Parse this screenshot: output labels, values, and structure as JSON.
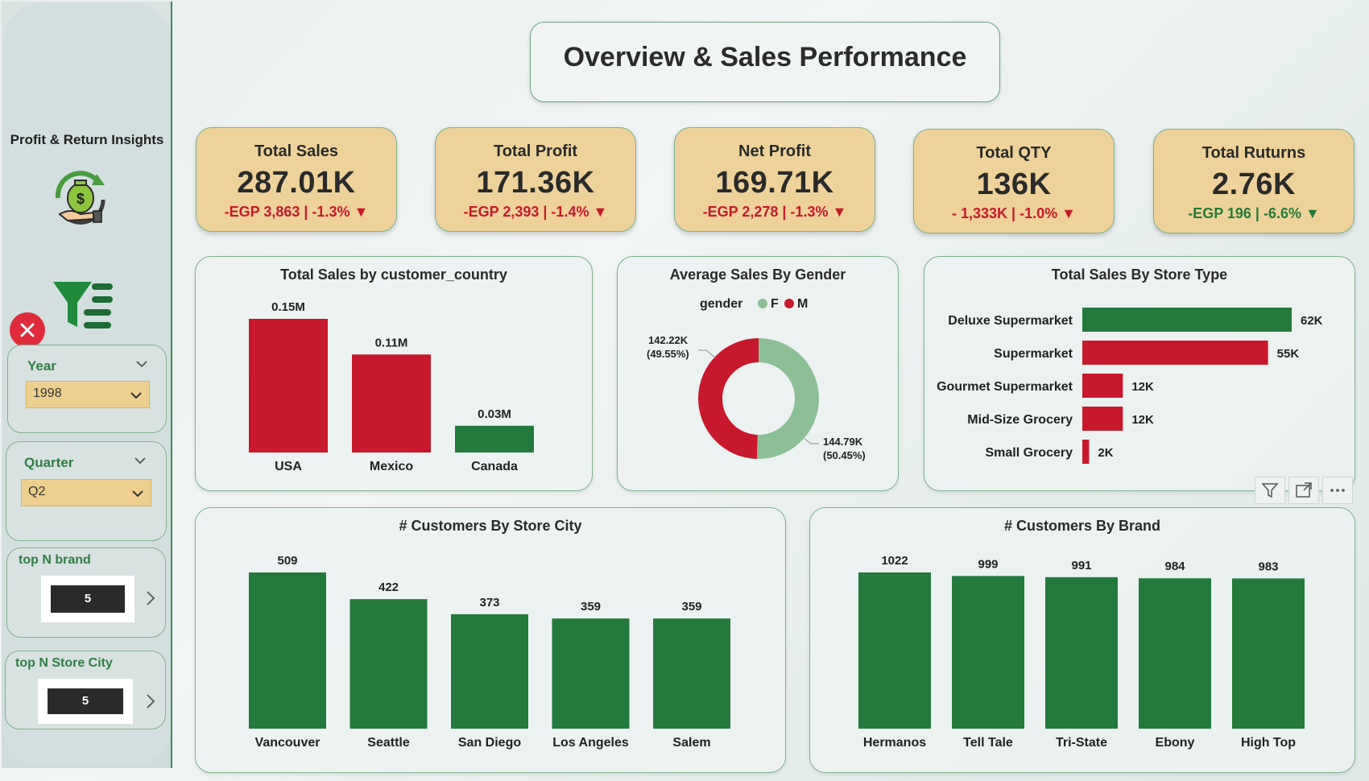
{
  "page": {
    "title": "Overview & Sales Performance"
  },
  "sidebar": {
    "nav_title": "Profit & Return Insights",
    "slicers": [
      {
        "label": "Year",
        "value": "1998"
      },
      {
        "label": "Quarter",
        "value": "Q2"
      }
    ],
    "top_n": [
      {
        "label": "top N brand",
        "value": "5"
      },
      {
        "label": "top N Store City",
        "value": "5"
      }
    ]
  },
  "kpis": [
    {
      "label": "Total Sales",
      "value": "287.01K",
      "delta": "-EGP 3,863 | -1.3%",
      "trend": "down",
      "color": "red"
    },
    {
      "label": "Total Profit",
      "value": "171.36K",
      "delta": "-EGP 2,393 | -1.4%",
      "trend": "down",
      "color": "red"
    },
    {
      "label": "Net Profit",
      "value": "169.71K",
      "delta": "-EGP 2,278 | -1.3%",
      "trend": "down",
      "color": "red"
    },
    {
      "label": "Total QTY",
      "value": "136K",
      "delta": "- 1,333K | -1.0%",
      "trend": "down",
      "color": "red"
    },
    {
      "label": "Total Ruturns",
      "value": "2.76K",
      "delta": "-EGP 196 | -6.6%",
      "trend": "down",
      "color": "green"
    }
  ],
  "colors": {
    "red": "#c8182b",
    "green": "#237a3c",
    "light_green": "#8dbf97",
    "gold": "#efd29b"
  },
  "chart_data": [
    {
      "type": "bar",
      "title": "Total Sales by customer_country",
      "categories": [
        "USA",
        "Mexico",
        "Canada"
      ],
      "values": [
        0.15,
        0.11,
        0.03
      ],
      "labels": [
        "0.15M",
        "0.11M",
        "0.03M"
      ],
      "bar_colors": [
        "#c8182b",
        "#c8182b",
        "#237a3c"
      ]
    },
    {
      "type": "pie",
      "title": "Average Sales By Gender",
      "legend_title": "gender",
      "categories": [
        "F",
        "M"
      ],
      "values": [
        144.79,
        142.22
      ],
      "labels": [
        "144.79K (50.45%)",
        "142.22K (49.55%)"
      ],
      "label_lines": {
        "F": [
          "144.79K",
          "(50.45%)"
        ],
        "M": [
          "142.22K",
          "(49.55%)"
        ]
      },
      "slice_colors": [
        "#8dbf97",
        "#c8182b"
      ]
    },
    {
      "type": "bar",
      "orientation": "horizontal",
      "title": "Total Sales By Store Type",
      "categories": [
        "Deluxe Supermarket",
        "Supermarket",
        "Gourmet Supermarket",
        "Mid-Size Grocery",
        "Small Grocery"
      ],
      "values": [
        62,
        55,
        12,
        12,
        2
      ],
      "labels": [
        "62K",
        "55K",
        "12K",
        "12K",
        "2K"
      ],
      "bar_colors": [
        "#237a3c",
        "#c8182b",
        "#c8182b",
        "#c8182b",
        "#c8182b"
      ]
    },
    {
      "type": "bar",
      "title": "# Customers By Store City",
      "categories": [
        "Vancouver",
        "Seattle",
        "San Diego",
        "Los Angeles",
        "Salem"
      ],
      "values": [
        509,
        422,
        373,
        359,
        359
      ],
      "labels": [
        "509",
        "422",
        "373",
        "359",
        "359"
      ],
      "bar_colors": [
        "#237a3c",
        "#237a3c",
        "#237a3c",
        "#237a3c",
        "#237a3c"
      ]
    },
    {
      "type": "bar",
      "title": "# Customers By Brand",
      "categories": [
        "Hermanos",
        "Tell Tale",
        "Tri-State",
        "Ebony",
        "High Top"
      ],
      "values": [
        1022,
        999,
        991,
        984,
        983
      ],
      "labels": [
        "1022",
        "999",
        "991",
        "984",
        "983"
      ],
      "bar_colors": [
        "#237a3c",
        "#237a3c",
        "#237a3c",
        "#237a3c",
        "#237a3c"
      ]
    }
  ],
  "icons": [
    "money-bag-cycle-icon",
    "filter-list-icon",
    "close-icon",
    "chevron-down-icon",
    "chevron-right-icon",
    "filter-icon",
    "focus-mode-icon",
    "more-options-icon"
  ]
}
